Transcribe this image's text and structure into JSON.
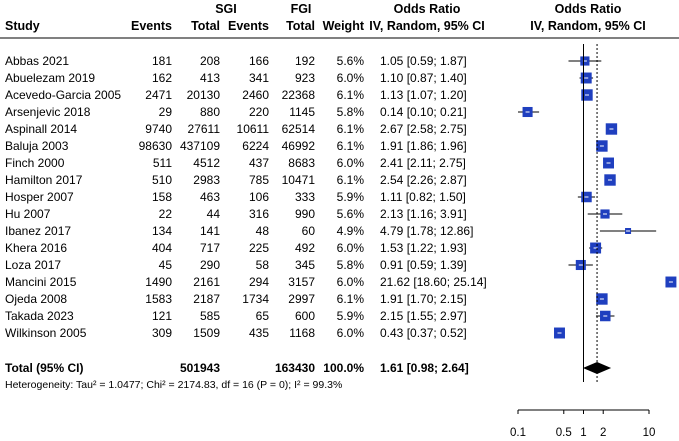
{
  "header": {
    "group1_title": "SGI",
    "group2_title": "FGI",
    "col_study": "Study",
    "col_events1": "Events",
    "col_total1": "Total",
    "col_events2": "Events",
    "col_total2": "Total",
    "col_weight": "Weight",
    "col_or_title": "Odds Ratio",
    "col_or_sub": "IV, Random, 95% CI",
    "plot_title": "Odds Ratio",
    "plot_sub": "IV, Random, 95% CI"
  },
  "studies": [
    {
      "study": "Abbas 2021",
      "events1": "181",
      "total1": "208",
      "events2": "166",
      "total2": "192",
      "weight": "5.6%",
      "or_text": "1.05 [0.59; 1.87]",
      "or": 1.05,
      "lo": 0.59,
      "hi": 1.87
    },
    {
      "study": "Abuelezam 2019",
      "events1": "162",
      "total1": "413",
      "events2": "341",
      "total2": "923",
      "weight": "6.0%",
      "or_text": "1.10 [0.87; 1.40]",
      "or": 1.1,
      "lo": 0.87,
      "hi": 1.4
    },
    {
      "study": "Acevedo-Garcia 2005",
      "events1": "2471",
      "total1": "20130",
      "events2": "2460",
      "total2": "22368",
      "weight": "6.1%",
      "or_text": "1.13 [1.07; 1.20]",
      "or": 1.13,
      "lo": 1.07,
      "hi": 1.2
    },
    {
      "study": "Arsenjevic 2018",
      "events1": "29",
      "total1": "880",
      "events2": "220",
      "total2": "1145",
      "weight": "5.8%",
      "or_text": "0.14 [0.10; 0.21]",
      "or": 0.14,
      "lo": 0.1,
      "hi": 0.21
    },
    {
      "study": "Aspinall 2014",
      "events1": "9740",
      "total1": "27611",
      "events2": "10611",
      "total2": "62514",
      "weight": "6.1%",
      "or_text": "2.67 [2.58; 2.75]",
      "or": 2.67,
      "lo": 2.58,
      "hi": 2.75
    },
    {
      "study": "Baluja 2003",
      "events1": "98630",
      "total1": "437109",
      "events2": "6224",
      "total2": "46992",
      "weight": "6.1%",
      "or_text": "1.91 [1.86; 1.96]",
      "or": 1.91,
      "lo": 1.86,
      "hi": 1.96
    },
    {
      "study": "Finch 2000",
      "events1": "511",
      "total1": "4512",
      "events2": "437",
      "total2": "8683",
      "weight": "6.0%",
      "or_text": "2.41 [2.11; 2.75]",
      "or": 2.41,
      "lo": 2.11,
      "hi": 2.75
    },
    {
      "study": "Hamilton 2017",
      "events1": "510",
      "total1": "2983",
      "events2": "785",
      "total2": "10471",
      "weight": "6.1%",
      "or_text": "2.54 [2.26; 2.87]",
      "or": 2.54,
      "lo": 2.26,
      "hi": 2.87
    },
    {
      "study": "Hosper 2007",
      "events1": "158",
      "total1": "463",
      "events2": "106",
      "total2": "333",
      "weight": "5.9%",
      "or_text": "1.11 [0.82; 1.50]",
      "or": 1.11,
      "lo": 0.82,
      "hi": 1.5
    },
    {
      "study": "Hu 2007",
      "events1": "22",
      "total1": "44",
      "events2": "316",
      "total2": "990",
      "weight": "5.6%",
      "or_text": "2.13 [1.16; 3.91]",
      "or": 2.13,
      "lo": 1.16,
      "hi": 3.91
    },
    {
      "study": "Ibanez 2017",
      "events1": "134",
      "total1": "141",
      "events2": "48",
      "total2": "60",
      "weight": "4.9%",
      "or_text": "4.79 [1.78; 12.86]",
      "or": 4.79,
      "lo": 1.78,
      "hi": 12.86
    },
    {
      "study": "Khera 2016",
      "events1": "404",
      "total1": "717",
      "events2": "225",
      "total2": "492",
      "weight": "6.0%",
      "or_text": "1.53 [1.22; 1.93]",
      "or": 1.53,
      "lo": 1.22,
      "hi": 1.93
    },
    {
      "study": "Loza 2017",
      "events1": "45",
      "total1": "290",
      "events2": "58",
      "total2": "345",
      "weight": "5.8%",
      "or_text": "0.91 [0.59; 1.39]",
      "or": 0.91,
      "lo": 0.59,
      "hi": 1.39
    },
    {
      "study": "Mancini 2015",
      "events1": "1490",
      "total1": "2161",
      "events2": "294",
      "total2": "3157",
      "weight": "6.0%",
      "or_text": "21.62 [18.60; 25.14]",
      "or": 21.62,
      "lo": 18.6,
      "hi": 25.14
    },
    {
      "study": "Ojeda 2008",
      "events1": "1583",
      "total1": "2187",
      "events2": "1734",
      "total2": "2997",
      "weight": "6.1%",
      "or_text": "1.91 [1.70; 2.15]",
      "or": 1.91,
      "lo": 1.7,
      "hi": 2.15
    },
    {
      "study": "Takada 2023",
      "events1": "121",
      "total1": "585",
      "events2": "65",
      "total2": "600",
      "weight": "5.9%",
      "or_text": "2.15 [1.55; 2.97]",
      "or": 2.15,
      "lo": 1.55,
      "hi": 2.97
    },
    {
      "study": "Wilkinson 2005",
      "events1": "309",
      "total1": "1509",
      "events2": "435",
      "total2": "1168",
      "weight": "6.0%",
      "or_text": "0.43 [0.37; 0.52]",
      "or": 0.43,
      "lo": 0.37,
      "hi": 0.52
    }
  ],
  "total": {
    "label": "Total (95% CI)",
    "total1": "501943",
    "total2": "163430",
    "weight": "100.0%",
    "or_text": "1.61 [0.98; 2.64]",
    "or": 1.61,
    "lo": 0.98,
    "hi": 2.64
  },
  "heterogeneity": "Heterogeneity: Tau² = 1.0477; Chi² = 2174.83, df = 16 (P = 0); I² = 99.3%",
  "colors": {
    "box": "#1f3fbf",
    "diamond": "#000000",
    "line": "#000000"
  },
  "chart_data": {
    "type": "forest",
    "x_scale": "log",
    "xlim": [
      0.07,
      27
    ],
    "x_ticks": [
      0.1,
      0.5,
      1,
      2,
      10
    ],
    "x_tick_labels": [
      "0.1",
      "0.5",
      "1",
      "2",
      "10"
    ],
    "reference_line": 1,
    "pooled_line": 1.61
  }
}
